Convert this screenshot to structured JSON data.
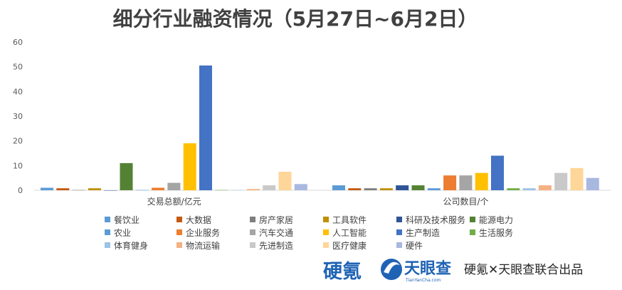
{
  "chart_data": {
    "type": "bar",
    "title": "细分行业融资情况（5月27日~6月2日）",
    "categories": [
      "交易总额/亿元",
      "公司数目/个"
    ],
    "ylim": [
      0,
      60
    ],
    "yticks": [
      0,
      10,
      20,
      30,
      40,
      50,
      60
    ],
    "grid": false,
    "legend_position": "bottom",
    "series": [
      {
        "name": "餐饮业",
        "color": "#5b9bd5",
        "values": [
          1,
          2
        ]
      },
      {
        "name": "大数据",
        "color": "#c55a11",
        "values": [
          0.8,
          0.8
        ]
      },
      {
        "name": "房产家居",
        "color": "#7f7f7f",
        "values": [
          0.1,
          0.8
        ]
      },
      {
        "name": "工具软件",
        "color": "#bf9000",
        "values": [
          0.8,
          0.8
        ]
      },
      {
        "name": "科研及技术服务",
        "color": "#2f5597",
        "values": [
          0,
          2
        ]
      },
      {
        "name": "能源电力",
        "color": "#548235",
        "values": [
          11,
          2
        ]
      },
      {
        "name": "农业",
        "color": "#5b9bd5",
        "values": [
          0.1,
          0.8
        ]
      },
      {
        "name": "企业服务",
        "color": "#ed7d31",
        "values": [
          1,
          6
        ]
      },
      {
        "name": "汽车交通",
        "color": "#a5a5a5",
        "values": [
          3,
          6
        ]
      },
      {
        "name": "人工智能",
        "color": "#ffc000",
        "values": [
          19,
          7
        ]
      },
      {
        "name": "生产制造",
        "color": "#4472c4",
        "values": [
          50.5,
          14
        ]
      },
      {
        "name": "生活服务",
        "color": "#70ad47",
        "values": [
          0.1,
          0.8
        ]
      },
      {
        "name": "体育健身",
        "color": "#9dc3e6",
        "values": [
          0.1,
          0.8
        ]
      },
      {
        "name": "物流运输",
        "color": "#f4b183",
        "values": [
          0.5,
          2
        ]
      },
      {
        "name": "先进制造",
        "color": "#c9c9c9",
        "values": [
          2,
          7
        ]
      },
      {
        "name": "医疗健康",
        "color": "#ffd699",
        "values": [
          7.5,
          9
        ]
      },
      {
        "name": "硬件",
        "color": "#a9b8e0",
        "values": [
          2.5,
          5
        ]
      }
    ]
  },
  "footer": {
    "logo_main": "硬氪",
    "logo_tianyancha": "天眼查",
    "logo_tianyancha_sub": "TianYanCha.com",
    "credit": "硬氪✕天眼查联合出品"
  }
}
